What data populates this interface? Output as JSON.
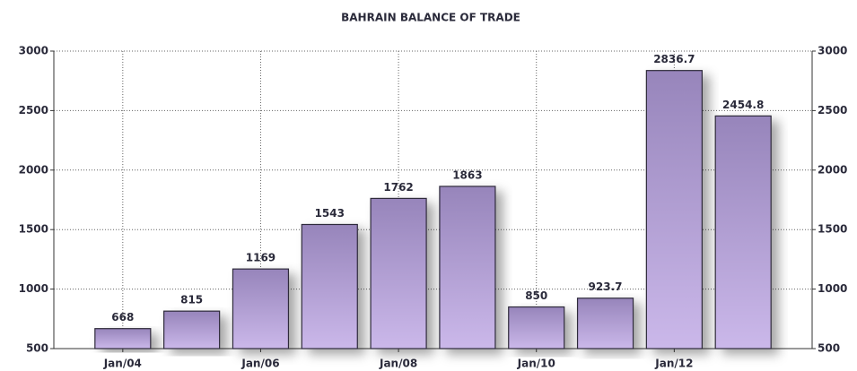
{
  "chart_data": {
    "type": "bar",
    "title": "BAHRAIN BALANCE OF TRADE",
    "categories": [
      "Jan/04",
      null,
      "Jan/06",
      null,
      "Jan/08",
      null,
      "Jan/10",
      null,
      "Jan/12",
      null
    ],
    "values": [
      668,
      815,
      1169,
      1543,
      1762,
      1863,
      850,
      923.7,
      2836.7,
      2454.8
    ],
    "color": "#a08fc4",
    "ylim": [
      500,
      3000
    ],
    "yticks": [
      500,
      1000,
      1500,
      2000,
      2500,
      3000
    ],
    "y2lim": [
      500,
      3000
    ],
    "y2ticks": [
      500,
      1000,
      1500,
      2000,
      2500,
      3000
    ],
    "grid": true
  }
}
